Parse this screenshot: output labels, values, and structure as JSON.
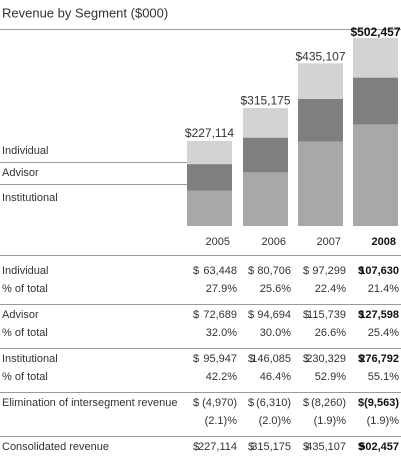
{
  "chart_data": {
    "type": "stacked-bar",
    "title": "Revenue by Segment ($000)",
    "categories": [
      "2005",
      "2006",
      "2007",
      "2008"
    ],
    "series": [
      {
        "name": "Institutional",
        "color": "#a8a8a8",
        "values": [
          95947,
          146085,
          230329,
          276792
        ]
      },
      {
        "name": "Advisor",
        "color": "#7f7f7f",
        "values": [
          72689,
          94694,
          115739,
          127598
        ]
      },
      {
        "name": "Individual",
        "color": "#d3d3d3",
        "values": [
          63448,
          80706,
          97299,
          107630
        ]
      }
    ],
    "totals": {
      "values": [
        227114,
        315175,
        435107,
        502457
      ],
      "value_labels": [
        "$227,114",
        "$315,175",
        "$435,107",
        "$502,457"
      ]
    }
  },
  "table": {
    "groups": [
      [
        {
          "label": "Individual",
          "cells": [
            {
              "sym": "$",
              "amt": "63,448"
            },
            {
              "sym": "$",
              "amt": "80,706"
            },
            {
              "sym": "$",
              "amt": "97,299"
            },
            {
              "sym": "$",
              "amt": "107,630"
            }
          ]
        },
        {
          "label": "% of total",
          "cells": [
            "27.9%",
            "25.6%",
            "22.4%",
            "21.4%"
          ]
        }
      ],
      [
        {
          "label": "Advisor",
          "cells": [
            {
              "sym": "$",
              "amt": "72,689"
            },
            {
              "sym": "$",
              "amt": "94,694"
            },
            {
              "sym": "$",
              "amt": "115,739"
            },
            {
              "sym": "$",
              "amt": "127,598"
            }
          ]
        },
        {
          "label": "% of total",
          "cells": [
            "32.0%",
            "30.0%",
            "26.6%",
            "25.4%"
          ]
        }
      ],
      [
        {
          "label": "Institutional",
          "cells": [
            {
              "sym": "$",
              "amt": "95,947"
            },
            {
              "sym": "$",
              "amt": "146,085"
            },
            {
              "sym": "$",
              "amt": "230,329"
            },
            {
              "sym": "$",
              "amt": "276,792"
            }
          ]
        },
        {
          "label": "% of total",
          "cells": [
            "42.2%",
            "46.4%",
            "52.9%",
            "55.1%"
          ]
        }
      ],
      [
        {
          "label": "Elimination of intersegment revenue",
          "cells": [
            {
              "sym": "$",
              "amt": "(4,970)"
            },
            {
              "sym": "$",
              "amt": "(6,310)"
            },
            {
              "sym": "$",
              "amt": "(8,260)"
            },
            {
              "sym": "$",
              "amt": "(9,563)"
            }
          ]
        },
        {
          "label": "",
          "cells": [
            "(2.1)%",
            "(2.0)%",
            "(1.9)%",
            "(1.9)%"
          ]
        }
      ],
      [
        {
          "label": "Consolidated revenue",
          "cells": [
            {
              "sym": "$",
              "amt": "227,114"
            },
            {
              "sym": "$",
              "amt": "315,175"
            },
            {
              "sym": "$",
              "amt": "435,107"
            },
            {
              "sym": "$",
              "amt": "502,457"
            }
          ]
        }
      ]
    ]
  }
}
